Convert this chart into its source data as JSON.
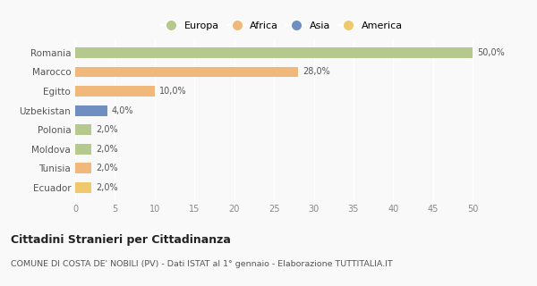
{
  "categories": [
    "Romania",
    "Marocco",
    "Egitto",
    "Uzbekistan",
    "Polonia",
    "Moldova",
    "Tunisia",
    "Ecuador"
  ],
  "values": [
    50.0,
    28.0,
    10.0,
    4.0,
    2.0,
    2.0,
    2.0,
    2.0
  ],
  "labels": [
    "50,0%",
    "28,0%",
    "10,0%",
    "4,0%",
    "2,0%",
    "2,0%",
    "2,0%",
    "2,0%"
  ],
  "colors": [
    "#b5c98e",
    "#f0b87a",
    "#f0b87a",
    "#6e8fbf",
    "#b5c98e",
    "#b5c98e",
    "#f0b87a",
    "#f0c96e"
  ],
  "legend_labels": [
    "Europa",
    "Africa",
    "Asia",
    "America"
  ],
  "legend_colors": [
    "#b5c98e",
    "#f0b87a",
    "#6e8fbf",
    "#f0c96e"
  ],
  "xlim": [
    0,
    52
  ],
  "xticks": [
    0,
    5,
    10,
    15,
    20,
    25,
    30,
    35,
    40,
    45,
    50
  ],
  "title": "Cittadini Stranieri per Cittadinanza",
  "subtitle": "COMUNE DI COSTA DE' NOBILI (PV) - Dati ISTAT al 1° gennaio - Elaborazione TUTTITALIA.IT",
  "bg_color": "#f9f9f9",
  "plot_bg_color": "#f9f9f9",
  "grid_color": "#ffffff",
  "bar_height": 0.55
}
